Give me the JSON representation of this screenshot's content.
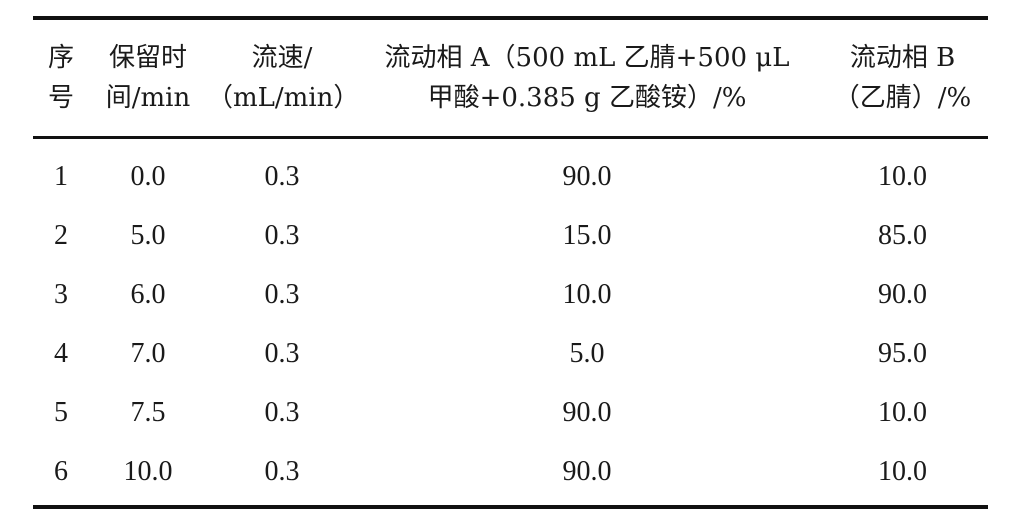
{
  "table": {
    "headers": [
      {
        "line1": "序",
        "line2": "号"
      },
      {
        "line1": "保留时",
        "line2": "间/min"
      },
      {
        "line1": "流速/",
        "line2": "（mL/min）"
      },
      {
        "line1": "流动相 A（500 mL 乙腈+500 μL",
        "line2": "甲酸+0.385 g 乙酸铵）/%"
      },
      {
        "line1": "流动相 B",
        "line2": "（乙腈）/%"
      }
    ],
    "rows": [
      [
        "1",
        "0.0",
        "0.3",
        "90.0",
        "10.0"
      ],
      [
        "2",
        "5.0",
        "0.3",
        "15.0",
        "85.0"
      ],
      [
        "3",
        "6.0",
        "0.3",
        "10.0",
        "90.0"
      ],
      [
        "4",
        "7.0",
        "0.3",
        "5.0",
        "95.0"
      ],
      [
        "5",
        "7.5",
        "0.3",
        "90.0",
        "10.0"
      ],
      [
        "6",
        "10.0",
        "0.3",
        "90.0",
        "10.0"
      ]
    ]
  }
}
